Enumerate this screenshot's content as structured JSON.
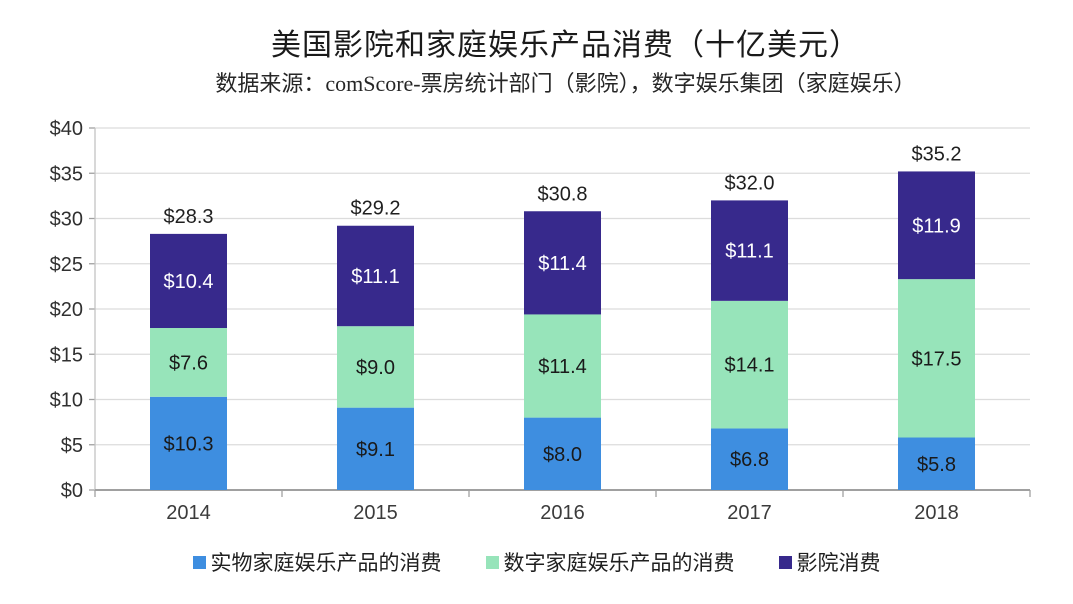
{
  "chart_data": {
    "type": "bar",
    "stacked": true,
    "title": "美国影院和家庭娱乐产品消费（十亿美元）",
    "subtitle": "数据来源：comScore-票房统计部门（影院），数字娱乐集团（家庭娱乐）",
    "categories": [
      "2014",
      "2015",
      "2016",
      "2017",
      "2018"
    ],
    "series": [
      {
        "name": "实物家庭娱乐产品的消费",
        "color": "#3E8EE0",
        "label_color": "#1A1A1A",
        "values": [
          10.3,
          9.1,
          8.0,
          6.8,
          5.8
        ]
      },
      {
        "name": "数字家庭娱乐产品的消费",
        "color": "#97E4BA",
        "label_color": "#1A1A1A",
        "values": [
          7.6,
          9.0,
          11.4,
          14.1,
          17.5
        ]
      },
      {
        "name": "影院消费",
        "color": "#37298C",
        "label_color": "#FFFFFF",
        "values": [
          10.4,
          11.1,
          11.4,
          11.1,
          11.9
        ]
      }
    ],
    "totals": [
      28.3,
      29.2,
      30.8,
      32.0,
      35.2
    ],
    "value_prefix": "$",
    "ylabel": "",
    "xlabel": "",
    "ylim": [
      0,
      40
    ],
    "ytick_step": 5,
    "ytick_labels": [
      "$0",
      "$5",
      "$10",
      "$15",
      "$20",
      "$25",
      "$30",
      "$35",
      "$40"
    ],
    "grid": true,
    "legend_position": "bottom",
    "colors": {
      "gridline": "#DCDCDC",
      "axis": "#A0A0A0",
      "axis_line_left": "#C4C4C4",
      "tick_text": "#303030",
      "total_label": "#1F1F1F",
      "category_text": "#3b3b3b"
    }
  }
}
